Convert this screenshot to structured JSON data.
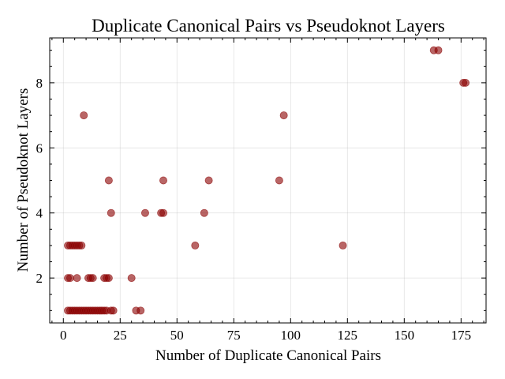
{
  "chart_data": {
    "type": "scatter",
    "title": "Duplicate Canonical Pairs vs Pseudoknot Layers",
    "xlabel": "Number of Duplicate Canonical Pairs",
    "ylabel": "Number of Pseudoknot Layers",
    "xlim": [
      -6,
      186
    ],
    "ylim": [
      0.62,
      9.38
    ],
    "x_ticks": [
      0,
      25,
      50,
      75,
      100,
      125,
      150,
      175
    ],
    "y_ticks": [
      2,
      4,
      6,
      8
    ],
    "grid": true,
    "marker_color": "#8b0000",
    "marker_opacity": 0.6,
    "series": [
      {
        "x": [
          2,
          3,
          4,
          5,
          6,
          7,
          8,
          9,
          10,
          11,
          12,
          13,
          14,
          15,
          16,
          17,
          18,
          19,
          21,
          22,
          32,
          34,
          2,
          3,
          6,
          11,
          12,
          13,
          18,
          19,
          20,
          30,
          2,
          3,
          4,
          5,
          6,
          7,
          8,
          21,
          43,
          44,
          36,
          62,
          20,
          44,
          64,
          95,
          9,
          97,
          58,
          123,
          163,
          165,
          176,
          177
        ],
        "y": [
          1,
          1,
          1,
          1,
          1,
          1,
          1,
          1,
          1,
          1,
          1,
          1,
          1,
          1,
          1,
          1,
          1,
          1,
          1,
          1,
          1,
          1,
          2,
          2,
          2,
          2,
          2,
          2,
          2,
          2,
          2,
          2,
          3,
          3,
          3,
          3,
          3,
          3,
          3,
          4,
          4,
          4,
          4,
          4,
          5,
          5,
          5,
          5,
          7,
          7,
          3,
          3,
          9,
          9,
          8,
          8
        ]
      }
    ]
  }
}
